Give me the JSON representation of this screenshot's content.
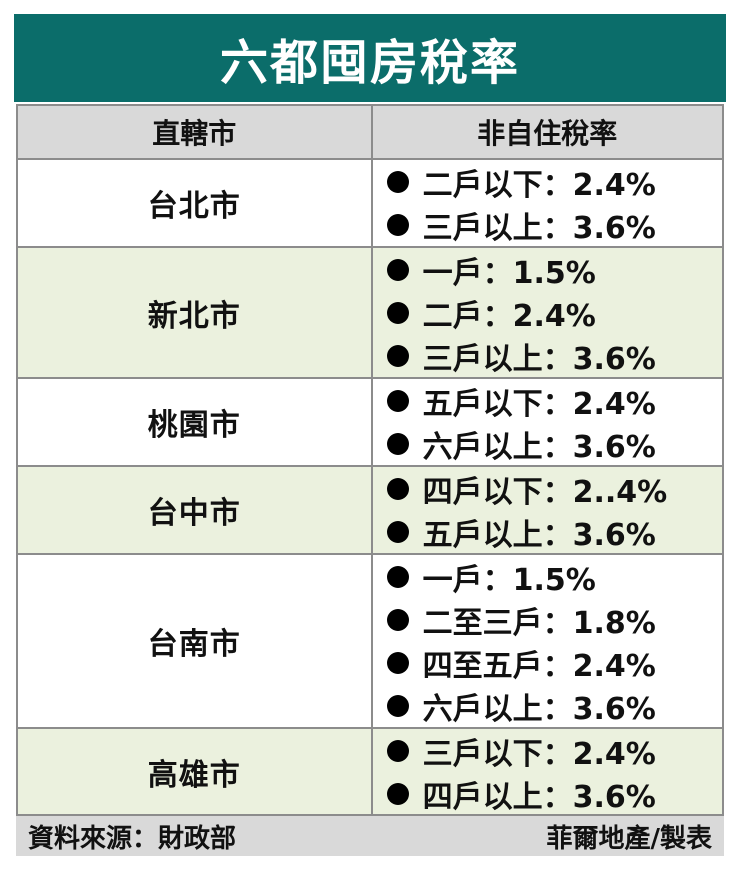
{
  "title": "六都囤房稅率",
  "header": {
    "city_col": "直轄市",
    "rate_col": "非自住稅率"
  },
  "rows": [
    {
      "city": "台北市",
      "rates": [
        "二戶以下：2.4%",
        "三戶以上：3.6%"
      ]
    },
    {
      "city": "新北市",
      "rates": [
        "一戶：1.5%",
        "二戶：2.4%",
        "三戶以上：3.6%"
      ]
    },
    {
      "city": "桃園市",
      "rates": [
        "五戶以下：2.4%",
        "六戶以上：3.6%"
      ]
    },
    {
      "city": "台中市",
      "rates": [
        "四戶以下：2..4%",
        "五戶以上：3.6%"
      ]
    },
    {
      "city": "台南市",
      "rates": [
        "一戶：1.5%",
        "二至三戶：1.8%",
        "四至五戶：2.4%",
        "六戶以上：3.6%"
      ]
    },
    {
      "city": "高雄市",
      "rates": [
        "三戶以下：2.4%",
        "四戶以上：3.6%"
      ]
    }
  ],
  "footer": {
    "source": "資料來源：財政部",
    "credit": "菲爾地產/製表"
  },
  "colors": {
    "title_bg": "#0b6d6a",
    "header_bg": "#d9d9d9",
    "alt_row_bg": "#ebf1de",
    "border": "#8c8c8c"
  }
}
